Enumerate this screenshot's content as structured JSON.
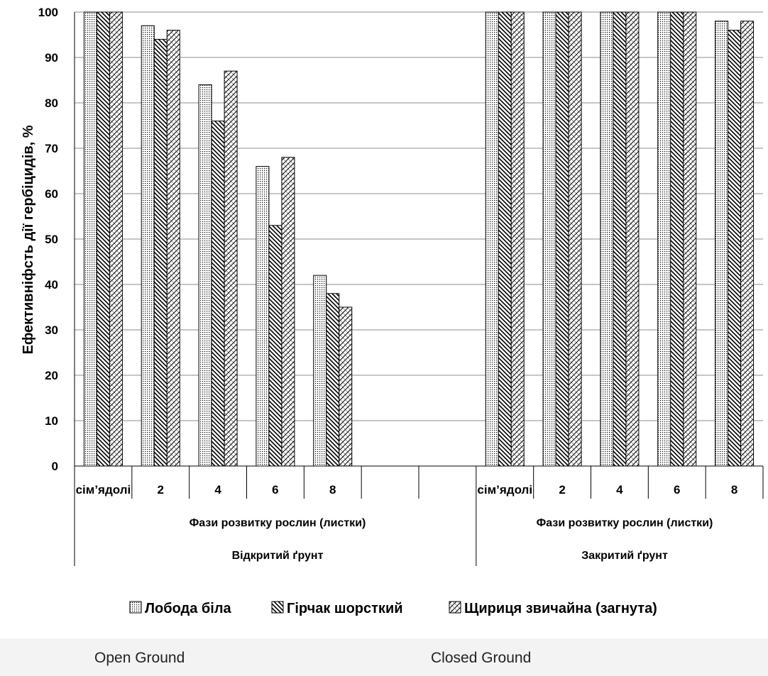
{
  "chart_data": {
    "type": "bar",
    "ylabel": "Ефективніфсть дії гербіцидів, %",
    "ylim": [
      0,
      100
    ],
    "yticks": [
      0,
      10,
      20,
      30,
      40,
      50,
      60,
      70,
      80,
      90,
      100
    ],
    "grid": true,
    "legend_position": "bottom",
    "categories": [
      "сім’ядолі",
      "2",
      "4",
      "6",
      "8",
      "",
      "",
      "сім’ядолі",
      "2",
      "4",
      "6",
      "8"
    ],
    "groups": [
      {
        "label": "Відкритий ґрунт",
        "sublabel": "Фази розвитку рослин (листки)"
      },
      {
        "label": "Закритий ґрунт",
        "sublabel": "Фази розвитку рослин (листки)"
      }
    ],
    "series": [
      {
        "name": "Лобода біла",
        "pattern": "dots",
        "values": [
          100,
          97,
          84,
          66,
          42,
          null,
          null,
          100,
          100,
          100,
          100,
          98
        ]
      },
      {
        "name": "Гірчак шорсткий",
        "pattern": "diagonal",
        "values": [
          100,
          94,
          76,
          53,
          38,
          null,
          null,
          100,
          100,
          100,
          100,
          96
        ]
      },
      {
        "name": "Щириця звичайна (загнута)",
        "pattern": "crosshatch",
        "values": [
          100,
          96,
          87,
          68,
          35,
          null,
          null,
          100,
          100,
          100,
          100,
          98
        ]
      }
    ]
  },
  "footer": {
    "left_label": "Open Ground",
    "right_label": "Closed Ground"
  }
}
